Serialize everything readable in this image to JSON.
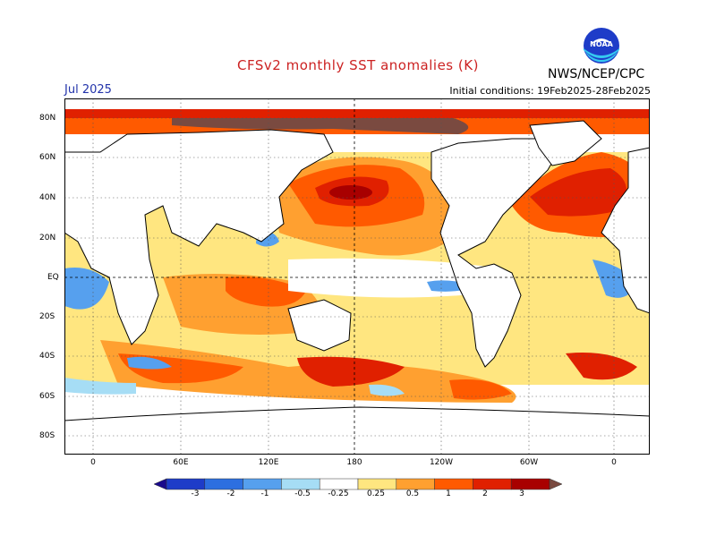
{
  "title": "CFSv2 monthly SST anomalies (K)",
  "period": "Jul 2025",
  "initial_conditions": "Initial conditions: 19Feb2025-28Feb2025",
  "agency": "NWS/NCEP/CPC",
  "logo_text": "NOAA",
  "lat_labels": [
    "80N",
    "60N",
    "40N",
    "20N",
    "EQ",
    "20S",
    "40S",
    "60S",
    "80S"
  ],
  "lon_labels": [
    "0",
    "60E",
    "120E",
    "180",
    "120W",
    "60W",
    "0"
  ],
  "colorbar": {
    "labels": [
      "-3",
      "-2",
      "-1",
      "-0.5",
      "-0.25",
      "0.25",
      "0.5",
      "1",
      "2",
      "3"
    ],
    "colors": [
      "#1a0a8c",
      "#1e3cc8",
      "#2d6fe0",
      "#56a0ee",
      "#a6ddf5",
      "#ffffff",
      "#ffe680",
      "#ffa030",
      "#ff5a00",
      "#e02000",
      "#a80000",
      "#7a4a40"
    ]
  },
  "colors": {
    "title": "#cc2222",
    "period": "#2233aa",
    "land": "#ffffff"
  }
}
